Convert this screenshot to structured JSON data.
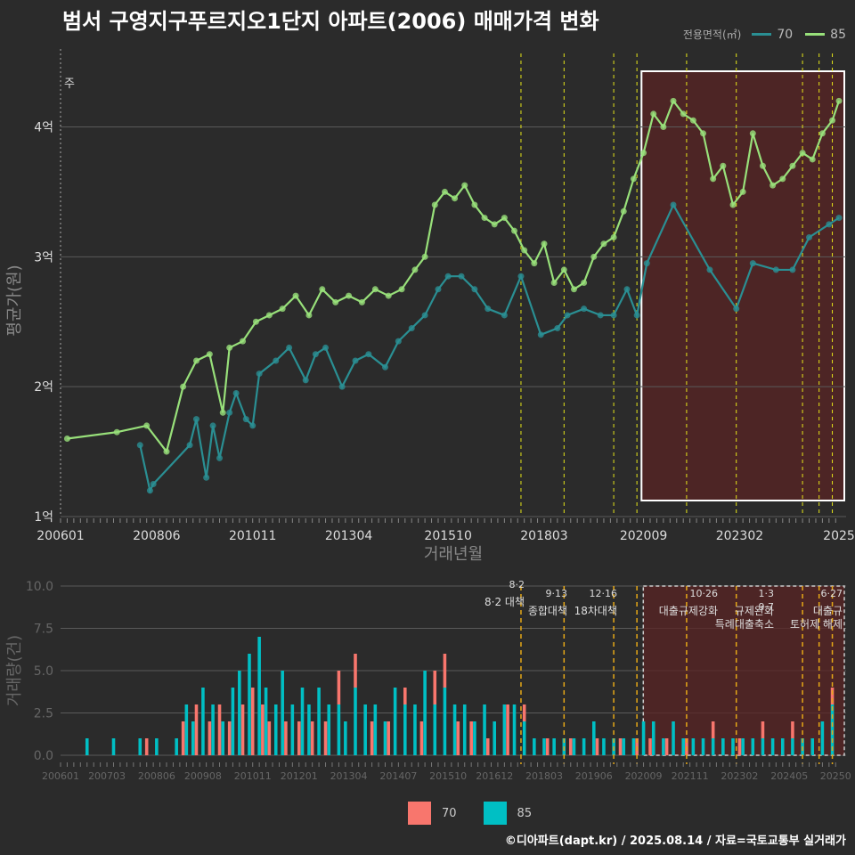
{
  "title": "범서 구영지구푸르지오1단지 아파트(2006) 매매가격 변화",
  "legend": {
    "title": "전용면적(㎡)",
    "items": [
      {
        "label": "70",
        "color": "#2a8f93"
      },
      {
        "label": "85",
        "color": "#98e07a"
      }
    ]
  },
  "bar_legend": [
    {
      "label": "70",
      "color": "#f8766d"
    },
    {
      "label": "85",
      "color": "#00bfc4"
    }
  ],
  "footer": "©디아파트(dapt.kr) / 2025.08.14 / 자료=국토교통부 실거래가",
  "chart_data": [
    {
      "type": "line",
      "xlabel": "거래년월",
      "ylabel": "평균가(원)",
      "ylim": [
        1,
        4.6
      ],
      "y_ticks": [
        "1억",
        "2억",
        "3억",
        "4억"
      ],
      "y_tick_values": [
        1,
        2,
        3,
        4
      ],
      "x_ticks": [
        "200601",
        "200806",
        "201011",
        "201304",
        "201510",
        "201803",
        "202009",
        "202302",
        "2025"
      ],
      "corner_label": "주",
      "grid": true,
      "highlight_range": [
        "2020-10",
        "2025-08"
      ],
      "series": [
        {
          "name": "70",
          "color": "#2a8f93",
          "x": [
            "2008-01",
            "2008-04",
            "2008-05",
            "2009-04",
            "2009-06",
            "2009-09",
            "2009-11",
            "2010-01",
            "2010-04",
            "2010-06",
            "2010-09",
            "2010-11",
            "2011-01",
            "2011-06",
            "2011-10",
            "2012-03",
            "2012-06",
            "2012-09",
            "2013-02",
            "2013-06",
            "2013-10",
            "2014-03",
            "2014-07",
            "2014-11",
            "2015-03",
            "2015-07",
            "2015-10",
            "2016-02",
            "2016-06",
            "2016-10",
            "2017-03",
            "2017-08",
            "2018-02",
            "2018-07",
            "2018-10",
            "2019-03",
            "2019-08",
            "2019-12",
            "2020-04",
            "2020-07",
            "2020-10",
            "2021-06",
            "2022-05",
            "2023-01",
            "2023-06",
            "2024-01",
            "2024-06",
            "2024-11",
            "2025-05",
            "2025-08"
          ],
          "values": [
            1.55,
            1.2,
            1.25,
            1.55,
            1.75,
            1.3,
            1.7,
            1.45,
            1.8,
            1.95,
            1.75,
            1.7,
            2.1,
            2.2,
            2.3,
            2.05,
            2.25,
            2.3,
            2.0,
            2.2,
            2.25,
            2.15,
            2.35,
            2.45,
            2.55,
            2.75,
            2.85,
            2.85,
            2.75,
            2.6,
            2.55,
            2.85,
            2.4,
            2.45,
            2.55,
            2.6,
            2.55,
            2.55,
            2.75,
            2.55,
            2.95,
            3.4,
            2.9,
            2.6,
            2.95,
            2.9,
            2.9,
            3.15,
            3.25,
            3.3
          ]
        },
        {
          "name": "85",
          "color": "#98e07a",
          "x": [
            "2006-03",
            "2007-06",
            "2008-03",
            "2008-09",
            "2009-02",
            "2009-06",
            "2009-10",
            "2010-02",
            "2010-04",
            "2010-08",
            "2010-12",
            "2011-04",
            "2011-08",
            "2011-12",
            "2012-04",
            "2012-08",
            "2012-12",
            "2013-04",
            "2013-08",
            "2013-12",
            "2014-04",
            "2014-08",
            "2014-12",
            "2015-03",
            "2015-06",
            "2015-09",
            "2015-12",
            "2016-03",
            "2016-06",
            "2016-09",
            "2016-12",
            "2017-03",
            "2017-06",
            "2017-09",
            "2017-12",
            "2018-03",
            "2018-06",
            "2018-09",
            "2018-12",
            "2019-03",
            "2019-06",
            "2019-09",
            "2019-12",
            "2020-03",
            "2020-06",
            "2020-09",
            "2020-12",
            "2021-03",
            "2021-06",
            "2021-09",
            "2021-12",
            "2022-03",
            "2022-06",
            "2022-09",
            "2022-12",
            "2023-03",
            "2023-06",
            "2023-09",
            "2023-12",
            "2024-03",
            "2024-06",
            "2024-09",
            "2024-12",
            "2025-03",
            "2025-06",
            "2025-08"
          ],
          "values": [
            1.6,
            1.65,
            1.7,
            1.5,
            2.0,
            2.2,
            2.25,
            1.8,
            2.3,
            2.35,
            2.5,
            2.55,
            2.6,
            2.7,
            2.55,
            2.75,
            2.65,
            2.7,
            2.65,
            2.75,
            2.7,
            2.75,
            2.9,
            3.0,
            3.4,
            3.5,
            3.45,
            3.55,
            3.4,
            3.3,
            3.25,
            3.3,
            3.2,
            3.05,
            2.95,
            3.1,
            2.8,
            2.9,
            2.75,
            2.8,
            3.0,
            3.1,
            3.15,
            3.35,
            3.6,
            3.8,
            4.1,
            4.0,
            4.2,
            4.1,
            4.05,
            3.95,
            3.6,
            3.7,
            3.4,
            3.5,
            3.95,
            3.7,
            3.55,
            3.6,
            3.7,
            3.8,
            3.75,
            3.95,
            4.05,
            4.2
          ]
        }
      ]
    },
    {
      "type": "bar",
      "xlabel": "",
      "ylabel": "거래량(건)",
      "ylim": [
        0,
        10
      ],
      "y_ticks": [
        "0.0",
        "2.5",
        "5.0",
        "7.5",
        "10.0"
      ],
      "y_tick_values": [
        0,
        2.5,
        5,
        7.5,
        10
      ],
      "x_ticks": [
        "200601",
        "200703",
        "200806",
        "200908",
        "201011",
        "201201",
        "201304",
        "201407",
        "201510",
        "201612",
        "201803",
        "201906",
        "202009",
        "202111",
        "202302",
        "202405",
        "20250"
      ],
      "highlight_range": [
        "2020-10",
        "2025-08"
      ],
      "annotations": [
        {
          "date": "8·2",
          "text": "8·2 대책"
        },
        {
          "date": "9·13",
          "text": "종합대책"
        },
        {
          "date": "12·16",
          "text": "18차대책"
        },
        {
          "date": "10·26",
          "text": "대출규제강화"
        },
        {
          "date": "1·3",
          "text": "규제완화"
        },
        {
          "date": "9·7",
          "text": "특례대출축소"
        },
        {
          "date": "",
          "text": "토허제 해제"
        },
        {
          "date": "6·27",
          "text": "대출규"
        }
      ],
      "series": [
        {
          "name": "70",
          "color": "#f8766d",
          "months": [
            "2008-03",
            "2009-02",
            "2009-06",
            "2009-10",
            "2010-01",
            "2010-04",
            "2010-08",
            "2010-11",
            "2011-02",
            "2011-04",
            "2011-09",
            "2012-01",
            "2012-05",
            "2012-09",
            "2013-01",
            "2013-06",
            "2013-11",
            "2014-04",
            "2014-09",
            "2015-02",
            "2015-06",
            "2015-09",
            "2016-01",
            "2016-05",
            "2016-10",
            "2017-04",
            "2017-09",
            "2018-04",
            "2018-11",
            "2019-07",
            "2020-02",
            "2020-07",
            "2020-11",
            "2021-04",
            "2021-10",
            "2022-06",
            "2023-02",
            "2023-09",
            "2024-06",
            "2025-06"
          ],
          "values": [
            1,
            2,
            3,
            2,
            3,
            2,
            3,
            4,
            3,
            2,
            2,
            2,
            2,
            2,
            2,
            2,
            2,
            2,
            1,
            2,
            2,
            2,
            2,
            2,
            1,
            3,
            1,
            1,
            1,
            1,
            1,
            1,
            1,
            1,
            1,
            1,
            1,
            1,
            1,
            1
          ]
        },
        {
          "name": "85",
          "color": "#00bfc4",
          "months": [
            "2006-09",
            "2007-05",
            "2008-01",
            "2008-06",
            "2008-12",
            "2009-03",
            "2009-05",
            "2009-08",
            "2009-11",
            "2010-02",
            "2010-05",
            "2010-07",
            "2010-10",
            "2011-01",
            "2011-03",
            "2011-06",
            "2011-08",
            "2011-11",
            "2012-02",
            "2012-04",
            "2012-07",
            "2012-10",
            "2013-01",
            "2013-03",
            "2013-06",
            "2013-09",
            "2013-12",
            "2014-03",
            "2014-06",
            "2014-09",
            "2014-12",
            "2015-03",
            "2015-06",
            "2015-09",
            "2015-12",
            "2016-03",
            "2016-06",
            "2016-09",
            "2016-12",
            "2017-03",
            "2017-06",
            "2017-09",
            "2017-12",
            "2018-03",
            "2018-06",
            "2018-09",
            "2018-12",
            "2019-03",
            "2019-06",
            "2019-09",
            "2019-12",
            "2020-03",
            "2020-06",
            "2020-09",
            "2020-12",
            "2021-03",
            "2021-06",
            "2021-09",
            "2021-12",
            "2022-03",
            "2022-06",
            "2022-09",
            "2022-12",
            "2023-03",
            "2023-06",
            "2023-09",
            "2023-12",
            "2024-03",
            "2024-06",
            "2024-09",
            "2024-12",
            "2025-03",
            "2025-06"
          ],
          "values": [
            1,
            1,
            1,
            1,
            1,
            3,
            2,
            4,
            3,
            2,
            4,
            5,
            6,
            7,
            4,
            3,
            5,
            3,
            4,
            3,
            4,
            3,
            3,
            2,
            4,
            3,
            3,
            2,
            4,
            3,
            3,
            5,
            3,
            4,
            3,
            3,
            2,
            3,
            2,
            3,
            3,
            2,
            1,
            1,
            1,
            1,
            1,
            1,
            2,
            1,
            1,
            1,
            1,
            2,
            2,
            1,
            2,
            1,
            1,
            1,
            1,
            1,
            1,
            1,
            1,
            1,
            1,
            1,
            1,
            1,
            1,
            2,
            3
          ]
        }
      ],
      "policy_lines": [
        "2017-08",
        "2018-09",
        "2019-12",
        "2020-07",
        "2021-10",
        "2023-01",
        "2024-09",
        "2025-02",
        "2025-06"
      ]
    }
  ]
}
